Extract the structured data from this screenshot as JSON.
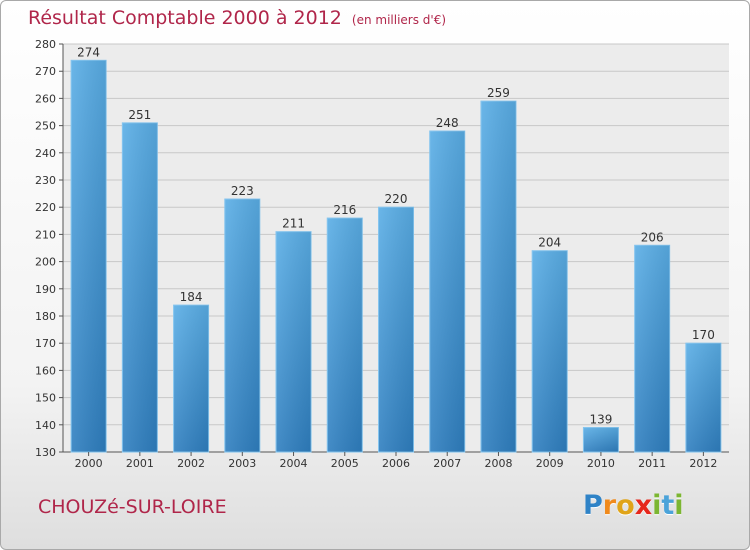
{
  "title": "Résultat Comptable 2000 à 2012",
  "subtitle": "(en milliers d'€)",
  "town": "CHOUZé-SUR-LOIRE",
  "logo": {
    "letters": [
      "P",
      "r",
      "o",
      "x",
      "i",
      "t",
      "i"
    ],
    "colors": [
      "#2f83c7",
      "#f08a1c",
      "#e0a419",
      "#e6271c",
      "#7cb632",
      "#4ba3d9",
      "#7cb632"
    ]
  },
  "colors": {
    "bar": "#4a9ed8",
    "title": "#b0264a",
    "grid": "#c8c8c8"
  },
  "chart_data": {
    "type": "bar",
    "title": "Résultat Comptable 2000 à 2012",
    "subtitle": "(en milliers d'€)",
    "categories": [
      "2000",
      "2001",
      "2002",
      "2003",
      "2004",
      "2005",
      "2006",
      "2007",
      "2008",
      "2009",
      "2010",
      "2011",
      "2012"
    ],
    "values": [
      274,
      251,
      184,
      223,
      211,
      216,
      220,
      248,
      259,
      204,
      139,
      206,
      170
    ],
    "ylim": [
      130,
      280
    ],
    "yticks": [
      130,
      140,
      150,
      160,
      170,
      180,
      190,
      200,
      210,
      220,
      230,
      240,
      250,
      260,
      270,
      280
    ],
    "grid": true,
    "data_labels": true
  }
}
